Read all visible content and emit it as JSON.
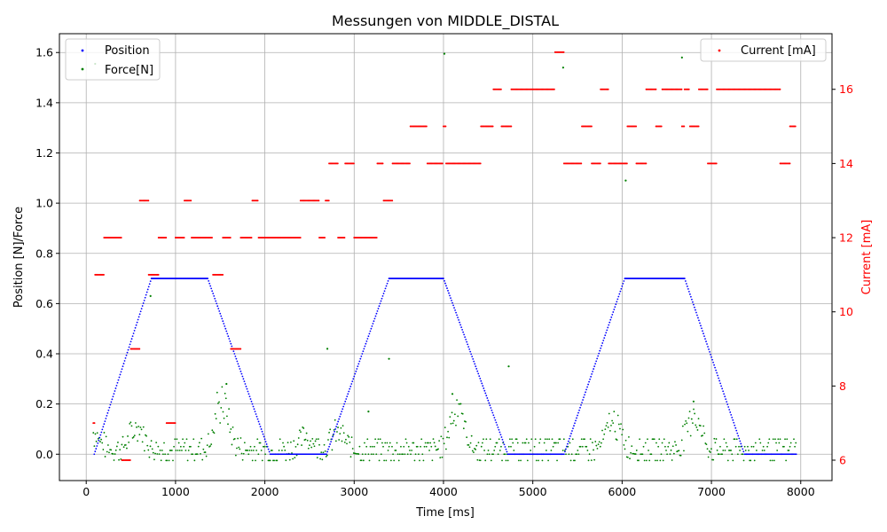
{
  "chart_data": {
    "type": "scatter",
    "title": "Messungen von MIDDLE_DISTAL",
    "xlabel": "Time [ms]",
    "ylabel": "Position [N]/Force",
    "y2label": "Current [mA]",
    "xlim": [
      -300,
      8350
    ],
    "ylim": [
      -0.105,
      1.675
    ],
    "y2lim": [
      5.45,
      17.5
    ],
    "x_ticks": [
      0,
      1000,
      2000,
      3000,
      4000,
      5000,
      6000,
      7000,
      8000
    ],
    "y_ticks": [
      0.0,
      0.2,
      0.4,
      0.6,
      0.8,
      1.0,
      1.2,
      1.4,
      1.6
    ],
    "y2_ticks": [
      6,
      8,
      10,
      12,
      14,
      16
    ],
    "grid": true,
    "legend_left": "upper-left",
    "legend_right": "upper-right",
    "colors": {
      "position": "#0000ff",
      "force": "#008000",
      "current": "#ff0000",
      "axis": "#000000",
      "grid": "#b0b0b0",
      "right_axis": "#ff0000"
    },
    "series": [
      {
        "name": "Position",
        "axis": "left",
        "profile": [
          [
            90,
            0.0
          ],
          [
            730,
            0.7
          ],
          [
            1360,
            0.7
          ],
          [
            2060,
            0.0
          ],
          [
            2690,
            0.0
          ],
          [
            3390,
            0.7
          ],
          [
            4000,
            0.7
          ],
          [
            4720,
            0.0
          ],
          [
            5350,
            0.0
          ],
          [
            6030,
            0.7
          ],
          [
            6700,
            0.7
          ],
          [
            7370,
            0.0
          ],
          [
            7950,
            0.0
          ]
        ],
        "step_ms": 10
      },
      {
        "name": "Force[N]",
        "axis": "left",
        "notable_points": [
          [
            100,
            1.555
          ],
          [
            4010,
            1.595
          ],
          [
            5340,
            1.54
          ],
          [
            6670,
            1.58
          ],
          [
            6040,
            1.09
          ],
          [
            2700,
            0.42
          ],
          [
            720,
            0.63
          ],
          [
            3390,
            0.38
          ],
          [
            4730,
            0.35
          ],
          [
            1570,
            0.28
          ],
          [
            6800,
            0.21
          ],
          [
            4100,
            0.24
          ],
          [
            3160,
            0.17
          ]
        ],
        "bumps": [
          [
            80,
            0.08
          ],
          [
            570,
            0.1
          ],
          [
            1520,
            0.22
          ],
          [
            2470,
            0.06
          ],
          [
            2820,
            0.08
          ],
          [
            4150,
            0.2
          ],
          [
            5900,
            0.13
          ],
          [
            6800,
            0.17
          ]
        ],
        "range_ms": [
          80,
          7950
        ]
      },
      {
        "name": "Current [mA]",
        "axis": "right",
        "segments": [
          [
            80,
            7
          ],
          [
            100,
            11
          ],
          [
            200,
            12
          ],
          [
            400,
            6
          ],
          [
            480,
            6
          ],
          [
            500,
            9
          ],
          [
            600,
            13
          ],
          [
            700,
            11
          ],
          [
            810,
            12
          ],
          [
            900,
            7
          ],
          [
            1000,
            12
          ],
          [
            1100,
            13
          ],
          [
            1180,
            12
          ],
          [
            1420,
            11
          ],
          [
            1530,
            12
          ],
          [
            1620,
            9
          ],
          [
            1730,
            12
          ],
          [
            1860,
            13
          ],
          [
            1930,
            12
          ],
          [
            2400,
            13
          ],
          [
            2610,
            12
          ],
          [
            2680,
            13
          ],
          [
            2720,
            14
          ],
          [
            2820,
            12
          ],
          [
            2900,
            14
          ],
          [
            3000,
            12
          ],
          [
            3260,
            14
          ],
          [
            3330,
            13
          ],
          [
            3430,
            14
          ],
          [
            3630,
            15
          ],
          [
            3820,
            14
          ],
          [
            4000,
            15
          ],
          [
            4030,
            14
          ],
          [
            4420,
            15
          ],
          [
            4560,
            16
          ],
          [
            4650,
            15
          ],
          [
            4760,
            16
          ],
          [
            5250,
            17
          ],
          [
            5350,
            14
          ],
          [
            5550,
            15
          ],
          [
            5660,
            14
          ],
          [
            5760,
            16
          ],
          [
            5850,
            14
          ],
          [
            6060,
            15
          ],
          [
            6160,
            14
          ],
          [
            6270,
            16
          ],
          [
            6380,
            15
          ],
          [
            6450,
            16
          ],
          [
            6670,
            15
          ],
          [
            6700,
            16
          ],
          [
            6760,
            15
          ],
          [
            6860,
            16
          ],
          [
            6960,
            14
          ],
          [
            7060,
            16
          ],
          [
            7770,
            14
          ],
          [
            7880,
            15
          ],
          [
            7950,
            15
          ]
        ],
        "step_ms": 12
      }
    ]
  }
}
